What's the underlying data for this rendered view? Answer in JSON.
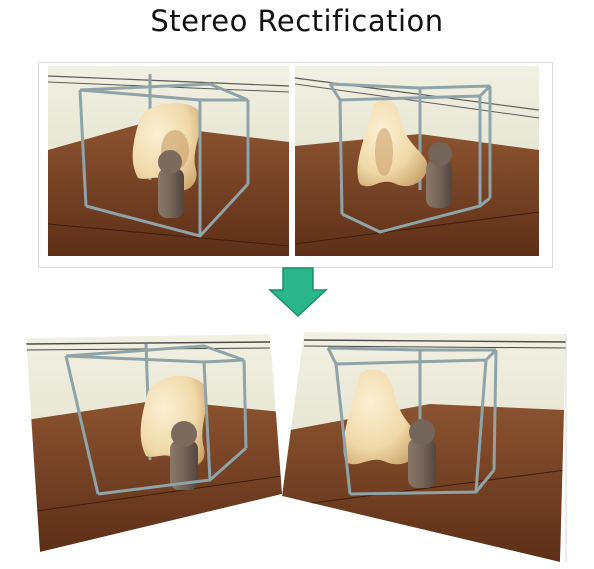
{
  "title": "Stereo Rectification",
  "colors": {
    "arrow": "#2bb58a",
    "arrow_stroke": "#1b8f6b",
    "wall": "#ecebd8",
    "wall_shadow": "#d8d6bd",
    "table": "#6e3a1f",
    "table_light": "#8a4f2b",
    "cage": "#8fa3a8",
    "sculpture": "#f3dfb6",
    "sculpture_shadow": "#c9a870",
    "statue": "#7c6a5c",
    "statue_dark": "#5a4b41"
  },
  "panels": {
    "original_left": "original-left-image",
    "original_right": "original-right-image",
    "rectified_left": "rectified-left-image",
    "rectified_right": "rectified-right-image"
  }
}
